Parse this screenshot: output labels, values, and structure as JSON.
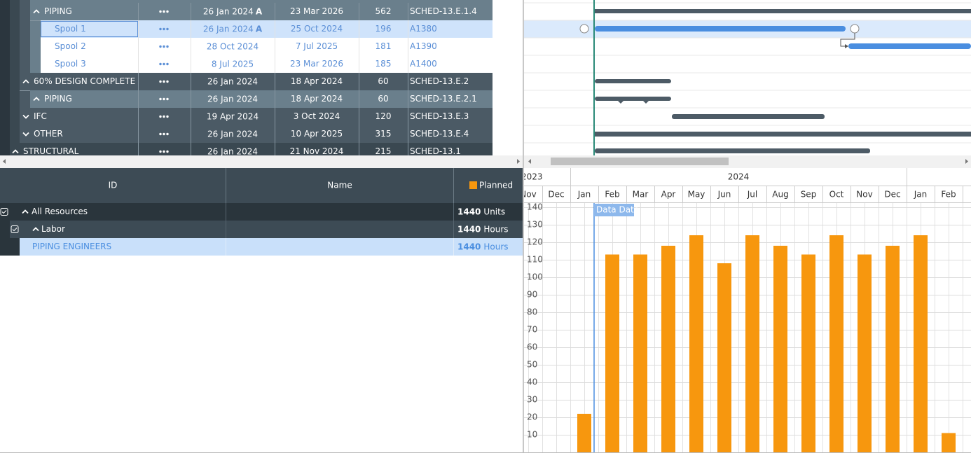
{
  "schedule": {
    "rows": [
      {
        "name": "PIPING",
        "start": "26 Jan 2024",
        "start_flag": "A",
        "finish": "23 Mar 2026",
        "duration": 562,
        "code": "SCHED-13.E.1.4"
      },
      {
        "name": "Spool 1",
        "start": "26 Jan 2024",
        "start_flag": "A",
        "finish": "25 Oct 2024",
        "duration": 196,
        "code": "A1380"
      },
      {
        "name": "Spool 2",
        "start": "28 Oct 2024",
        "finish": "7 Jul 2025",
        "duration": 181,
        "code": "A1390"
      },
      {
        "name": "Spool 3",
        "start": "8 Jul 2025",
        "finish": "23 Mar 2026",
        "duration": 185,
        "code": "A1400"
      },
      {
        "name": "60% DESIGN COMPLETE",
        "start": "26 Jan 2024",
        "finish": "18 Apr 2024",
        "duration": 60,
        "code": "SCHED-13.E.2"
      },
      {
        "name": "PIPING",
        "start": "26 Jan 2024",
        "finish": "18 Apr 2024",
        "duration": 60,
        "code": "SCHED-13.E.2.1"
      },
      {
        "name": "IFC",
        "start": "19 Apr 2024",
        "finish": "3 Oct 2024",
        "duration": 120,
        "code": "SCHED-13.E.3"
      },
      {
        "name": "OTHER",
        "start": "26 Jan 2024",
        "finish": "10 Apr 2025",
        "duration": 315,
        "code": "SCHED-13.E.4"
      },
      {
        "name": "STRUCTURAL",
        "start": "26 Jan 2024",
        "finish": "21 Nov 2024",
        "duration": 215,
        "code": "SCHED-13.1"
      }
    ]
  },
  "resources": {
    "header": {
      "id": "ID",
      "name": "Name",
      "planned": "Planned"
    },
    "rows": [
      {
        "id": "All Resources",
        "planned": 1440,
        "unit": "Units"
      },
      {
        "id": "Labor",
        "planned": 1440,
        "unit": "Hours"
      },
      {
        "id": "PIPING ENGINEERS",
        "planned": 1440,
        "unit": "Hours"
      }
    ]
  },
  "timeline": {
    "years": [
      "2023",
      "2024"
    ]
  },
  "chart_data": {
    "type": "bar",
    "label": "Data Date",
    "categories": [
      "Nov",
      "Dec",
      "Jan",
      "Feb",
      "Mar",
      "Apr",
      "May",
      "Jun",
      "Jul",
      "Aug",
      "Sep",
      "Oct",
      "Nov",
      "Dec",
      "Jan",
      "Feb"
    ],
    "values": [
      null,
      null,
      22,
      113,
      113,
      118,
      124,
      108,
      124,
      118,
      113,
      124,
      113,
      118,
      124,
      11
    ],
    "color": "#f7970e",
    "ylim": [
      0,
      140
    ],
    "yticks": [
      10,
      20,
      30,
      40,
      50,
      60,
      70,
      80,
      90,
      100,
      110,
      120,
      130,
      140
    ],
    "grid": true
  }
}
